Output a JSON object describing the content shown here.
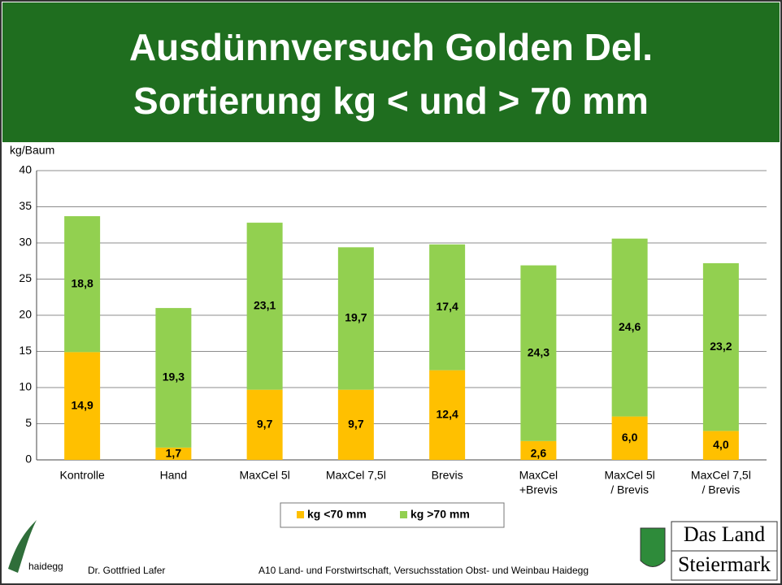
{
  "chart_data": {
    "type": "stacked_bar",
    "title": [
      "Ausdünnversuch Golden Del.",
      "Sortierung kg < und > 70 mm"
    ],
    "y_label": "kg/Baum",
    "categories": [
      [
        "Kontrolle"
      ],
      [
        "Hand"
      ],
      [
        "MaxCel 5l"
      ],
      [
        "MaxCel 7,5l"
      ],
      [
        "Brevis"
      ],
      [
        "MaxCel",
        "+Brevis"
      ],
      [
        "MaxCel 5l",
        "/ Brevis"
      ],
      [
        "MaxCel 7,5l",
        "/ Brevis"
      ]
    ],
    "series": [
      {
        "name": "kg <70 mm",
        "color": "#ffc000",
        "values": [
          14.9,
          1.7,
          9.7,
          9.7,
          12.4,
          2.6,
          6.0,
          4.0
        ],
        "value_labels": [
          "14,9",
          "1,7",
          "9,7",
          "9,7",
          "12,4",
          "2,6",
          "6,0",
          "4,0"
        ]
      },
      {
        "name": "kg >70 mm",
        "color": "#92d050",
        "values": [
          18.8,
          19.3,
          23.1,
          19.7,
          17.4,
          24.3,
          24.6,
          23.2
        ],
        "value_labels": [
          "18,8",
          "19,3",
          "23,1",
          "19,7",
          "17,4",
          "24,3",
          "24,6",
          "23,2"
        ]
      }
    ],
    "ylim": [
      0,
      40
    ],
    "yticks": [
      0,
      5,
      10,
      15,
      20,
      25,
      30,
      35,
      40
    ],
    "grid": true,
    "legend": "bottom"
  },
  "footer": {
    "logo_left": "haidegg",
    "author": "Dr. Gottfried Lafer",
    "institution": "A10 Land- und Forstwirtschaft, Versuchsstation Obst- und Weinbau Haidegg",
    "brand": [
      "Das Land",
      "Steiermark"
    ]
  }
}
